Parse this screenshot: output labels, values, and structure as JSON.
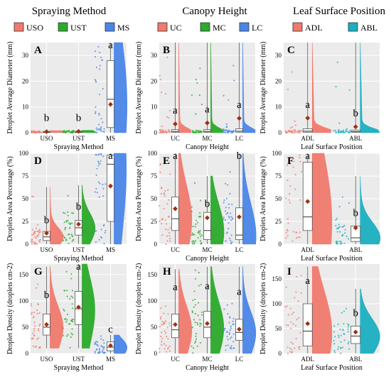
{
  "columns": [
    {
      "title": "Spraying Method",
      "legend": [
        {
          "label": "USO",
          "color": "#F07A6E"
        },
        {
          "label": "UST",
          "color": "#2BAA2B"
        },
        {
          "label": "MS",
          "color": "#4A86E8"
        }
      ]
    },
    {
      "title": "Canopy Height",
      "legend": [
        {
          "label": "UC",
          "color": "#F07A6E"
        },
        {
          "label": "MC",
          "color": "#2BAA2B"
        },
        {
          "label": "LC",
          "color": "#4A86E8"
        }
      ]
    },
    {
      "title": "Leaf Surface Position",
      "legend": [
        {
          "label": "ADL",
          "color": "#F07A6E"
        },
        {
          "label": "ABL",
          "color": "#1AAFC0"
        }
      ]
    }
  ],
  "chart_data": [
    {
      "type": "raincloud",
      "panel": "A",
      "col": 0,
      "row": 0,
      "xlabel": "Spraying Method",
      "ylabel": "Droplet Average Diameter (mm)",
      "ylim": [
        0,
        35
      ],
      "yticks": [
        0,
        10,
        20,
        30
      ],
      "categories": [
        {
          "name": "USO",
          "color": "#F07A6E",
          "mean": 0.4,
          "q1": 0.1,
          "median": 0.2,
          "q3": 0.5,
          "low": 0,
          "high": 0.8,
          "letter": "b",
          "letter_y": 4.6
        },
        {
          "name": "UST",
          "color": "#2BAA2B",
          "mean": 0.5,
          "q1": 0.1,
          "median": 0.25,
          "q3": 0.6,
          "low": 0,
          "high": 0.9,
          "letter": "b",
          "letter_y": 4.6
        },
        {
          "name": "MS",
          "color": "#4A86E8",
          "mean": 11.0,
          "q1": 2,
          "median": 13,
          "q3": 28,
          "low": 0,
          "high": 35,
          "letter": "a",
          "letter_y": 33
        }
      ]
    },
    {
      "type": "raincloud",
      "panel": "B",
      "col": 1,
      "row": 0,
      "xlabel": "Canopy Height",
      "ylabel": "Droplet Average Diameter (mm)",
      "ylim": [
        0,
        35
      ],
      "yticks": [
        0,
        10,
        20,
        30
      ],
      "categories": [
        {
          "name": "UC",
          "color": "#F07A6E",
          "mean": 3.4,
          "q1": 0.2,
          "median": 0.5,
          "q3": 1.2,
          "low": 0,
          "high": 35,
          "letter": "a",
          "letter_y": 7.4
        },
        {
          "name": "MC",
          "color": "#2BAA2B",
          "mean": 3.8,
          "q1": 0.2,
          "median": 0.5,
          "q3": 1.2,
          "low": 0,
          "high": 35,
          "letter": "a",
          "letter_y": 7.8
        },
        {
          "name": "LC",
          "color": "#4A86E8",
          "mean": 5.6,
          "q1": 0.2,
          "median": 0.6,
          "q3": 1.5,
          "low": 0,
          "high": 35,
          "letter": "a",
          "letter_y": 9.6
        }
      ]
    },
    {
      "type": "raincloud",
      "panel": "C",
      "col": 2,
      "row": 0,
      "xlabel": "Leaf Surface Position",
      "ylabel": "Droplet Average Diameter (mm)",
      "ylim": [
        0,
        35
      ],
      "yticks": [
        0,
        10,
        20,
        30
      ],
      "categories": [
        {
          "name": "ADL",
          "color": "#F07A6E",
          "mean": 5.7,
          "q1": 0.2,
          "median": 0.6,
          "q3": 1.5,
          "low": 0,
          "high": 35,
          "letter": "a",
          "letter_y": 9.7
        },
        {
          "name": "ABL",
          "color": "#1AAFC0",
          "mean": 2.3,
          "q1": 0.2,
          "median": 0.4,
          "q3": 1.0,
          "low": 0,
          "high": 35,
          "letter": "b",
          "letter_y": 6.3
        }
      ]
    },
    {
      "type": "raincloud",
      "panel": "D",
      "col": 0,
      "row": 1,
      "xlabel": "Spraying Method",
      "ylabel": "Droplets Area Percentage (%)",
      "ylim": [
        0,
        100
      ],
      "yticks": [
        0,
        25,
        50,
        75,
        100
      ],
      "categories": [
        {
          "name": "USO",
          "color": "#F07A6E",
          "mean": 12,
          "q1": 4,
          "median": 8,
          "q3": 14,
          "low": 0,
          "high": 63,
          "letter": "b",
          "letter_y": 23
        },
        {
          "name": "UST",
          "color": "#2BAA2B",
          "mean": 22,
          "q1": 10,
          "median": 18,
          "q3": 26,
          "low": 0,
          "high": 65,
          "letter": "b",
          "letter_y": 38
        },
        {
          "name": "MS",
          "color": "#4A86E8",
          "mean": 64,
          "q1": 25,
          "median": 88,
          "q3": 98,
          "low": 0,
          "high": 100,
          "letter": "a",
          "letter_y": 100
        }
      ]
    },
    {
      "type": "raincloud",
      "panel": "E",
      "col": 1,
      "row": 1,
      "xlabel": "Canopy Height",
      "ylabel": "Droplets Area Percentage (%)",
      "ylim": [
        0,
        100
      ],
      "yticks": [
        0,
        25,
        50,
        75,
        100
      ],
      "categories": [
        {
          "name": "UC",
          "color": "#F07A6E",
          "mean": 39,
          "q1": 15,
          "median": 28,
          "q3": 52,
          "low": 0,
          "high": 100,
          "letter": "a",
          "letter_y": 100
        },
        {
          "name": "MC",
          "color": "#2BAA2B",
          "mean": 29,
          "q1": 5,
          "median": 15,
          "q3": 35,
          "low": 0,
          "high": 75,
          "letter": "b",
          "letter_y": 41
        },
        {
          "name": "LC",
          "color": "#4A86E8",
          "mean": 30,
          "q1": 5,
          "median": 10,
          "q3": 40,
          "low": 0,
          "high": 100,
          "letter": "b",
          "letter_y": 100
        }
      ]
    },
    {
      "type": "raincloud",
      "panel": "F",
      "col": 2,
      "row": 1,
      "xlabel": "Leaf Surface Position",
      "ylabel": "Droplets Area Percentage (%)",
      "ylim": [
        0,
        100
      ],
      "yticks": [
        0,
        25,
        50,
        75,
        100
      ],
      "categories": [
        {
          "name": "ADL",
          "color": "#F07A6E",
          "mean": 47,
          "q1": 15,
          "median": 30,
          "q3": 90,
          "low": 0,
          "high": 100,
          "letter": "a",
          "letter_y": 100
        },
        {
          "name": "ABL",
          "color": "#1AAFC0",
          "mean": 18,
          "q1": 3,
          "median": 7,
          "q3": 20,
          "low": 0,
          "high": 75,
          "letter": "b",
          "letter_y": 31
        }
      ]
    },
    {
      "type": "raincloud",
      "panel": "G",
      "col": 0,
      "row": 2,
      "xlabel": "Spraying Method",
      "ylabel": "Droplet Density (droplets cm-2)",
      "ylim": [
        0,
        170
      ],
      "yticks": [
        0,
        50,
        100,
        150
      ],
      "categories": [
        {
          "name": "USO",
          "color": "#F07A6E",
          "mean": 55,
          "q1": 35,
          "median": 50,
          "q3": 75,
          "low": 10,
          "high": 165,
          "letter": "b",
          "letter_y": 105
        },
        {
          "name": "UST",
          "color": "#2BAA2B",
          "mean": 88,
          "q1": 55,
          "median": 85,
          "q3": 118,
          "low": 10,
          "high": 170,
          "letter": "a",
          "letter_y": 170
        },
        {
          "name": "MS",
          "color": "#4A86E8",
          "mean": 15,
          "q1": 5,
          "median": 12,
          "q3": 22,
          "low": 0,
          "high": 35,
          "letter": "c",
          "letter_y": 40
        }
      ]
    },
    {
      "type": "raincloud",
      "panel": "H",
      "col": 1,
      "row": 2,
      "xlabel": "Canopy Height",
      "ylabel": "Droplet Density (droplets cm-2)",
      "ylim": [
        0,
        170
      ],
      "yticks": [
        0,
        50,
        100,
        150
      ],
      "categories": [
        {
          "name": "UC",
          "color": "#F07A6E",
          "mean": 55,
          "q1": 30,
          "median": 45,
          "q3": 75,
          "low": 0,
          "high": 160,
          "letter": "a",
          "letter_y": 120
        },
        {
          "name": "MC",
          "color": "#2BAA2B",
          "mean": 57,
          "q1": 30,
          "median": 50,
          "q3": 80,
          "low": 0,
          "high": 165,
          "letter": "a",
          "letter_y": 122
        },
        {
          "name": "LC",
          "color": "#4A86E8",
          "mean": 46,
          "q1": 25,
          "median": 40,
          "q3": 65,
          "low": 0,
          "high": 165,
          "letter": "a",
          "letter_y": 111
        }
      ]
    },
    {
      "type": "raincloud",
      "panel": "I",
      "col": 2,
      "row": 2,
      "xlabel": "Leaf Surface Position",
      "ylabel": "Droplet Density (droplets cm-2)",
      "ylim": [
        0,
        180
      ],
      "yticks": [
        0,
        50,
        100,
        150
      ],
      "categories": [
        {
          "name": "ADL",
          "color": "#F07A6E",
          "mean": 60,
          "q1": 15,
          "median": 45,
          "q3": 100,
          "low": 0,
          "high": 175,
          "letter": "a",
          "letter_y": 140
        },
        {
          "name": "ABL",
          "color": "#1AAFC0",
          "mean": 43,
          "q1": 20,
          "median": 35,
          "q3": 55,
          "low": 0,
          "high": 130,
          "letter": "b",
          "letter_y": 75
        }
      ]
    }
  ]
}
